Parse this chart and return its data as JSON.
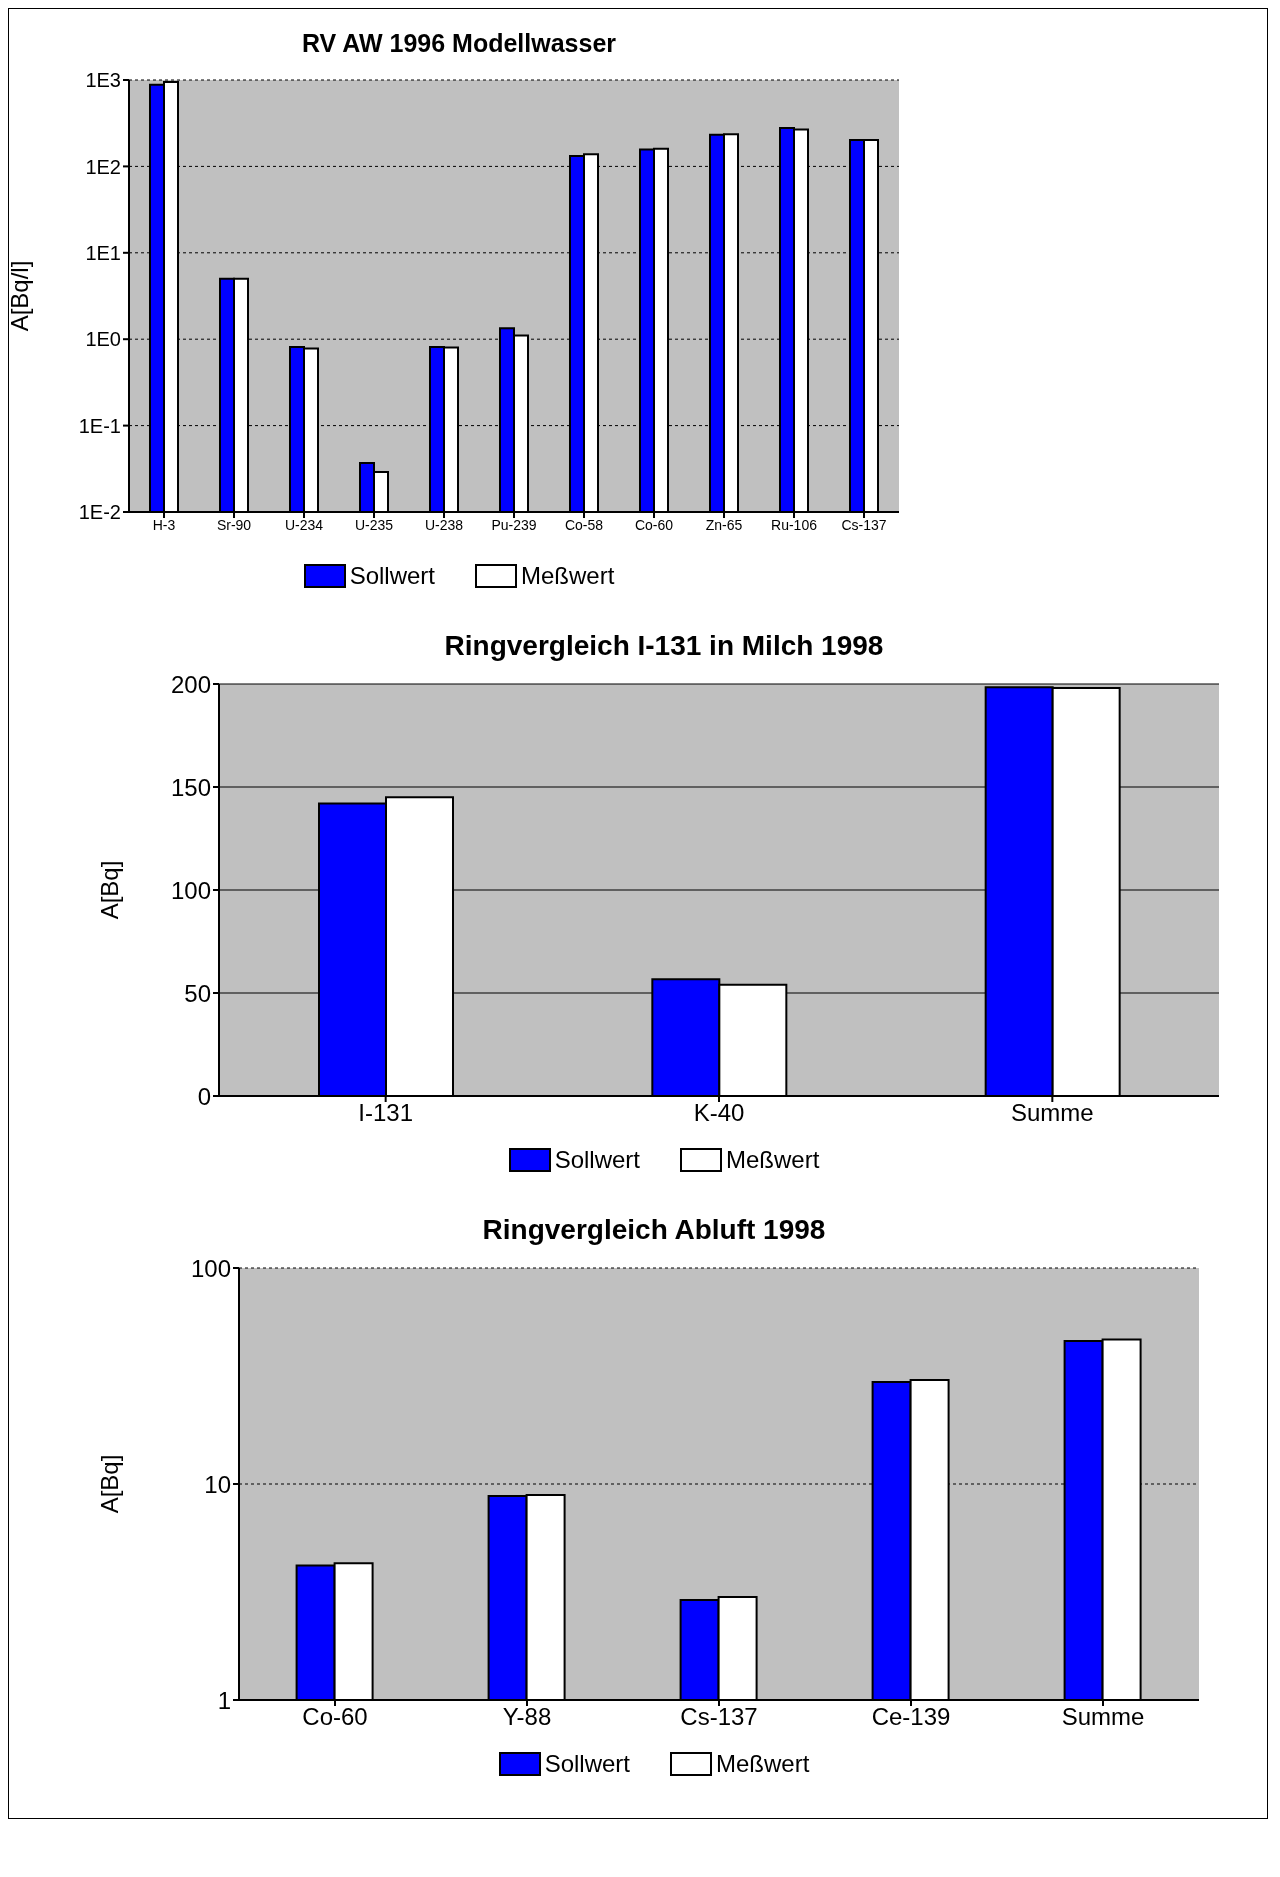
{
  "chart_data": [
    {
      "type": "bar",
      "title": "RV AW 1996 Modellwasser",
      "ylabel": "A[Bq/l]",
      "categories": [
        "H-3",
        "Sr-90",
        "U-234",
        "U-235",
        "U-238",
        "Pu-239",
        "Co-58",
        "Co-60",
        "Zn-65",
        "Ru-106",
        "Cs-137"
      ],
      "series": [
        {
          "name": "Sollwert",
          "color": "#0000ff",
          "values": [
            880,
            5.0,
            0.81,
            0.037,
            0.81,
            1.34,
            132,
            157,
            232,
            279,
            202
          ]
        },
        {
          "name": "Meßwert",
          "color": "#ffffff",
          "values": [
            950,
            5.0,
            0.78,
            0.029,
            0.8,
            1.1,
            138,
            160,
            235,
            267,
            202
          ]
        }
      ],
      "log": true,
      "ylim": [
        0.01,
        1000
      ],
      "yticks": [
        {
          "value": 0.01,
          "label": "1E-2"
        },
        {
          "value": 0.1,
          "label": "1E-1"
        },
        {
          "value": 1,
          "label": "1E0"
        },
        {
          "value": 10,
          "label": "1E1"
        },
        {
          "value": 100,
          "label": "1E2"
        },
        {
          "value": 1000,
          "label": "1E3"
        }
      ],
      "grid": "y",
      "legend": "bottom"
    },
    {
      "type": "bar",
      "title": "Ringvergleich I-131 in Milch 1998",
      "ylabel": "A[Bq]",
      "categories": [
        "I-131",
        "K-40",
        "Summe"
      ],
      "series": [
        {
          "name": "Sollwert",
          "color": "#0000ff",
          "values": [
            142,
            56.7,
            198.4
          ]
        },
        {
          "name": "Meßwert",
          "color": "#ffffff",
          "values": [
            145,
            54,
            198
          ]
        }
      ],
      "ylim": [
        0,
        200
      ],
      "yticks": [
        0,
        50,
        100,
        150,
        200
      ],
      "grid": "y",
      "legend": "bottom"
    },
    {
      "type": "bar",
      "title": "Ringvergleich Abluft 1998",
      "ylabel": "A[Bq]",
      "categories": [
        "Co-60",
        "Y-88",
        "Cs-137",
        "Ce-139",
        "Summe"
      ],
      "series": [
        {
          "name": "Sollwert",
          "color": "#0000ff",
          "values": [
            4.2,
            8.8,
            2.9,
            29.7,
            45.9
          ]
        },
        {
          "name": "Meßwert",
          "color": "#ffffff",
          "values": [
            4.3,
            8.9,
            3.0,
            30.3,
            46.7
          ]
        }
      ],
      "log": true,
      "ylim": [
        1,
        100
      ],
      "yticks": [
        1,
        10,
        100
      ],
      "grid": "y",
      "legend": "bottom"
    }
  ]
}
